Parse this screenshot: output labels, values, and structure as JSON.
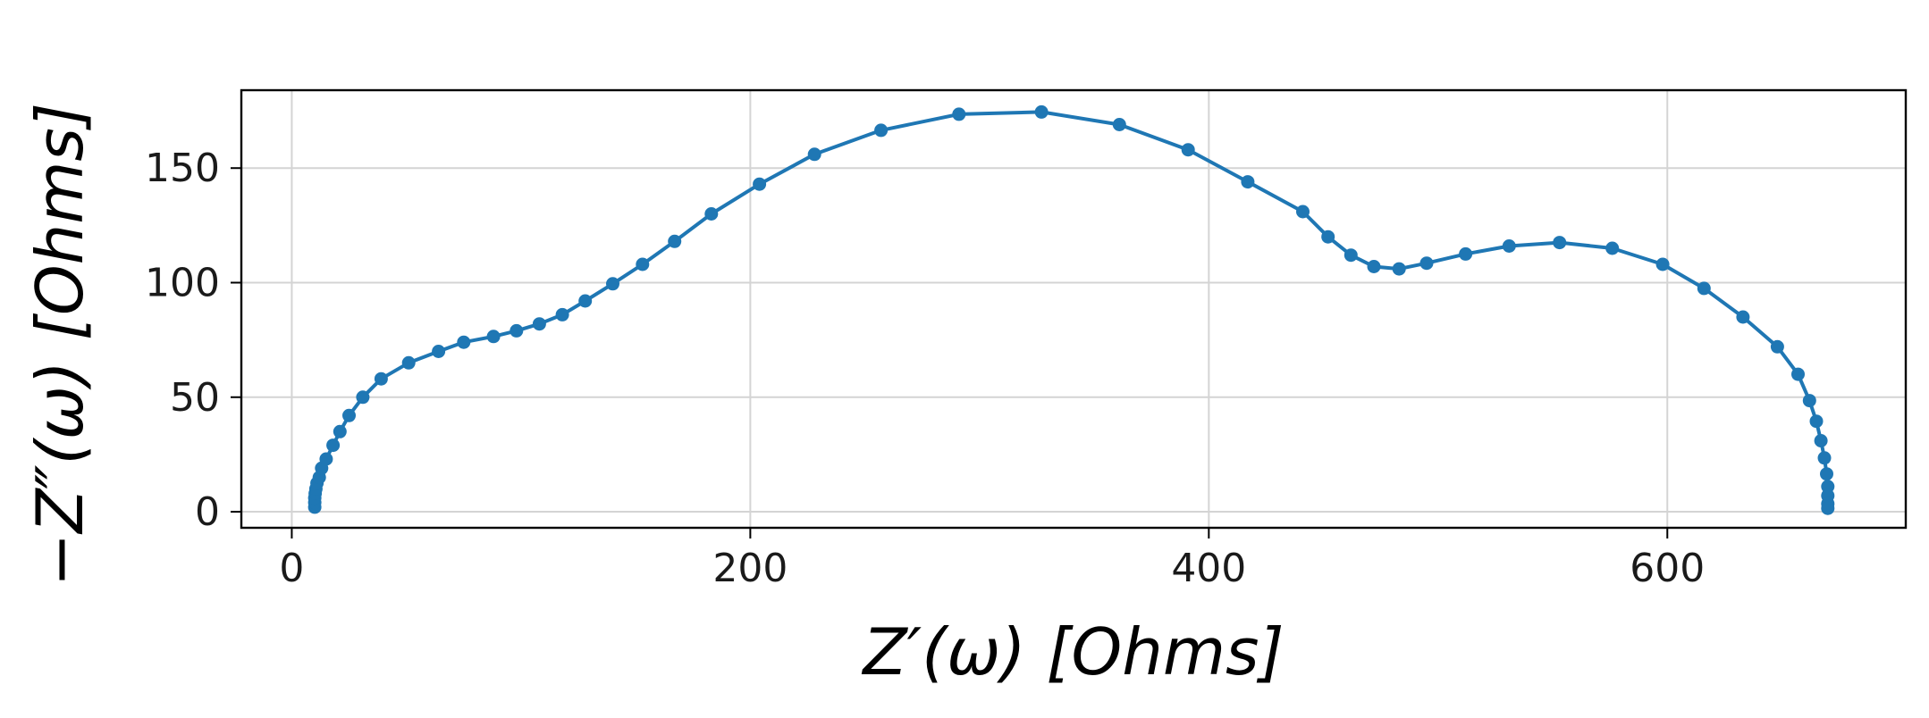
{
  "chart_data": {
    "type": "line",
    "title": "",
    "xlabel": "Z′(ω) [Ohms]",
    "ylabel": "−Z″(ω) [Ohms]",
    "xlim": [
      -22,
      704
    ],
    "ylim": [
      -7,
      184
    ],
    "xticks": [
      0,
      200,
      400,
      600
    ],
    "yticks": [
      0,
      50,
      100,
      150
    ],
    "grid": true,
    "legend": "none",
    "series": [
      {
        "color": "#1f77b4",
        "marker": "circle",
        "x": [
          10,
          10,
          10,
          10.2,
          10.5,
          11,
          12,
          13,
          15,
          18,
          21,
          25,
          31,
          39,
          51,
          64,
          75,
          88,
          98,
          108,
          118,
          128,
          140,
          153,
          167,
          183,
          204,
          228,
          257,
          291,
          327,
          361,
          391,
          417,
          441,
          452,
          462,
          472,
          483,
          495,
          512,
          531,
          553,
          576,
          598,
          616,
          633,
          648,
          657,
          662,
          665,
          667,
          668.5,
          669.5,
          670,
          670,
          670,
          670
        ],
        "y": [
          2,
          4,
          6,
          8,
          10,
          12.5,
          15,
          19,
          23,
          29,
          35,
          42,
          50,
          58,
          65,
          70,
          74,
          76.5,
          79,
          82,
          86,
          92,
          99.5,
          108,
          118,
          130,
          143,
          156,
          166.5,
          173.5,
          174.5,
          169,
          158,
          144,
          131,
          120,
          112,
          107,
          106,
          108.5,
          112.5,
          116,
          117.5,
          115,
          108,
          97.5,
          85,
          72,
          60,
          48.5,
          39.5,
          31,
          23.5,
          16.5,
          11,
          7,
          3.5,
          1.5
        ]
      }
    ]
  }
}
